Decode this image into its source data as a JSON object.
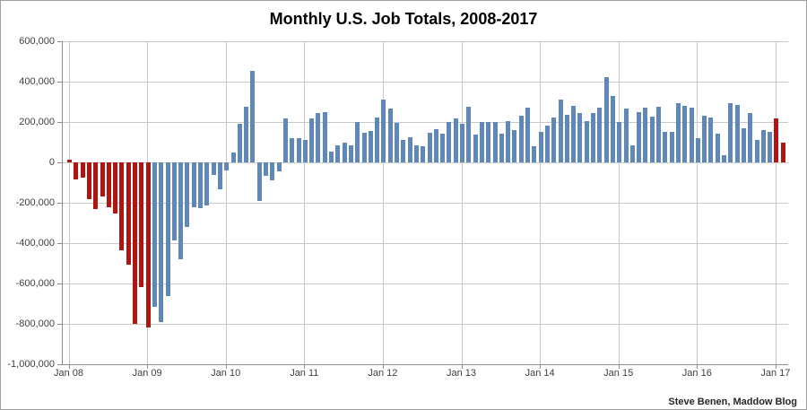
{
  "credit": "Steve Benen, Maddow Blog",
  "chart_data": {
    "type": "bar",
    "title": "Monthly U.S. Job Totals, 2008-2017",
    "xlabel": "",
    "ylabel": "",
    "units": "v = net monthly job change in thousands (bar values estimated from gridlines)",
    "ylim": [
      -1000000,
      600000
    ],
    "grid": "on",
    "legend": "none",
    "colors": {
      "blue": "#5f87b8",
      "red": "#b11512"
    },
    "y_axis": {
      "ticks": [
        {
          "label": "600,000",
          "v": 600
        },
        {
          "label": "400,000",
          "v": 400
        },
        {
          "label": "200,000",
          "v": 200
        },
        {
          "label": "0",
          "v": 0
        },
        {
          "label": "-200,000",
          "v": -200
        },
        {
          "label": "-400,000",
          "v": -400
        },
        {
          "label": "-600,000",
          "v": -600
        },
        {
          "label": "-800,000",
          "v": -800
        },
        {
          "label": "-1,000,000",
          "v": -1000
        }
      ]
    },
    "x_axis": {
      "ticks": [
        "Jan 08",
        "Jan 09",
        "Jan 10",
        "Jan 11",
        "Jan 12",
        "Jan 13",
        "Jan 14",
        "Jan 15",
        "Jan 16",
        "Jan 17"
      ]
    },
    "months": [
      {
        "m": "Jan 2008",
        "v": 15,
        "c": "red"
      },
      {
        "m": "Feb 2008",
        "v": -85,
        "c": "red"
      },
      {
        "m": "Mar 2008",
        "v": -74,
        "c": "red"
      },
      {
        "m": "Apr 2008",
        "v": -180,
        "c": "red"
      },
      {
        "m": "May 2008",
        "v": -230,
        "c": "red"
      },
      {
        "m": "Jun 2008",
        "v": -170,
        "c": "red"
      },
      {
        "m": "Jul 2008",
        "v": -222,
        "c": "red"
      },
      {
        "m": "Aug 2008",
        "v": -255,
        "c": "red"
      },
      {
        "m": "Sep 2008",
        "v": -435,
        "c": "red"
      },
      {
        "m": "Oct 2008",
        "v": -505,
        "c": "red"
      },
      {
        "m": "Nov 2008",
        "v": -800,
        "c": "red"
      },
      {
        "m": "Dec 2008",
        "v": -618,
        "c": "red"
      },
      {
        "m": "Jan 2009",
        "v": -818,
        "c": "red"
      },
      {
        "m": "Feb 2009",
        "v": -715,
        "c": "blue"
      },
      {
        "m": "Mar 2009",
        "v": -790,
        "c": "blue"
      },
      {
        "m": "Apr 2009",
        "v": -660,
        "c": "blue"
      },
      {
        "m": "May 2009",
        "v": -385,
        "c": "blue"
      },
      {
        "m": "Jun 2009",
        "v": -480,
        "c": "blue"
      },
      {
        "m": "Jul 2009",
        "v": -320,
        "c": "blue"
      },
      {
        "m": "Aug 2009",
        "v": -222,
        "c": "blue"
      },
      {
        "m": "Sep 2009",
        "v": -225,
        "c": "blue"
      },
      {
        "m": "Oct 2009",
        "v": -215,
        "c": "blue"
      },
      {
        "m": "Nov 2009",
        "v": -62,
        "c": "blue"
      },
      {
        "m": "Dec 2009",
        "v": -135,
        "c": "blue"
      },
      {
        "m": "Jan 2010",
        "v": -40,
        "c": "blue"
      },
      {
        "m": "Feb 2010",
        "v": 50,
        "c": "blue"
      },
      {
        "m": "Mar 2010",
        "v": 190,
        "c": "blue"
      },
      {
        "m": "Apr 2010",
        "v": 275,
        "c": "blue"
      },
      {
        "m": "May 2010",
        "v": 452,
        "c": "blue"
      },
      {
        "m": "Jun 2010",
        "v": -190,
        "c": "blue"
      },
      {
        "m": "Jul 2010",
        "v": -65,
        "c": "blue"
      },
      {
        "m": "Aug 2010",
        "v": -90,
        "c": "blue"
      },
      {
        "m": "Sep 2010",
        "v": -45,
        "c": "blue"
      },
      {
        "m": "Oct 2010",
        "v": 220,
        "c": "blue"
      },
      {
        "m": "Nov 2010",
        "v": 121,
        "c": "blue"
      },
      {
        "m": "Dec 2010",
        "v": 120,
        "c": "blue"
      },
      {
        "m": "Jan 2011",
        "v": 110,
        "c": "blue"
      },
      {
        "m": "Feb 2011",
        "v": 220,
        "c": "blue"
      },
      {
        "m": "Mar 2011",
        "v": 246,
        "c": "blue"
      },
      {
        "m": "Apr 2011",
        "v": 251,
        "c": "blue"
      },
      {
        "m": "May 2011",
        "v": 54,
        "c": "blue"
      },
      {
        "m": "Jun 2011",
        "v": 84,
        "c": "blue"
      },
      {
        "m": "Jul 2011",
        "v": 96,
        "c": "blue"
      },
      {
        "m": "Aug 2011",
        "v": 85,
        "c": "blue"
      },
      {
        "m": "Sep 2011",
        "v": 202,
        "c": "blue"
      },
      {
        "m": "Oct 2011",
        "v": 145,
        "c": "blue"
      },
      {
        "m": "Nov 2011",
        "v": 157,
        "c": "blue"
      },
      {
        "m": "Dec 2011",
        "v": 222,
        "c": "blue"
      },
      {
        "m": "Jan 2012",
        "v": 311,
        "c": "blue"
      },
      {
        "m": "Feb 2012",
        "v": 267,
        "c": "blue"
      },
      {
        "m": "Mar 2012",
        "v": 197,
        "c": "blue"
      },
      {
        "m": "Apr 2012",
        "v": 111,
        "c": "blue"
      },
      {
        "m": "May 2012",
        "v": 123,
        "c": "blue"
      },
      {
        "m": "Jun 2012",
        "v": 84,
        "c": "blue"
      },
      {
        "m": "Jul 2012",
        "v": 81,
        "c": "blue"
      },
      {
        "m": "Aug 2012",
        "v": 148,
        "c": "blue"
      },
      {
        "m": "Sep 2012",
        "v": 163,
        "c": "blue"
      },
      {
        "m": "Oct 2012",
        "v": 141,
        "c": "blue"
      },
      {
        "m": "Nov 2012",
        "v": 200,
        "c": "blue"
      },
      {
        "m": "Dec 2012",
        "v": 218,
        "c": "blue"
      },
      {
        "m": "Jan 2013",
        "v": 193,
        "c": "blue"
      },
      {
        "m": "Feb 2013",
        "v": 277,
        "c": "blue"
      },
      {
        "m": "Mar 2013",
        "v": 138,
        "c": "blue"
      },
      {
        "m": "Apr 2013",
        "v": 198,
        "c": "blue"
      },
      {
        "m": "May 2013",
        "v": 198,
        "c": "blue"
      },
      {
        "m": "Jun 2013",
        "v": 198,
        "c": "blue"
      },
      {
        "m": "Jul 2013",
        "v": 144,
        "c": "blue"
      },
      {
        "m": "Aug 2013",
        "v": 203,
        "c": "blue"
      },
      {
        "m": "Sep 2013",
        "v": 158,
        "c": "blue"
      },
      {
        "m": "Oct 2013",
        "v": 232,
        "c": "blue"
      },
      {
        "m": "Nov 2013",
        "v": 270,
        "c": "blue"
      },
      {
        "m": "Dec 2013",
        "v": 78,
        "c": "blue"
      },
      {
        "m": "Jan 2014",
        "v": 150,
        "c": "blue"
      },
      {
        "m": "Feb 2014",
        "v": 182,
        "c": "blue"
      },
      {
        "m": "Mar 2014",
        "v": 222,
        "c": "blue"
      },
      {
        "m": "Apr 2014",
        "v": 310,
        "c": "blue"
      },
      {
        "m": "May 2014",
        "v": 237,
        "c": "blue"
      },
      {
        "m": "Jun 2014",
        "v": 281,
        "c": "blue"
      },
      {
        "m": "Jul 2014",
        "v": 244,
        "c": "blue"
      },
      {
        "m": "Aug 2014",
        "v": 203,
        "c": "blue"
      },
      {
        "m": "Sep 2014",
        "v": 244,
        "c": "blue"
      },
      {
        "m": "Oct 2014",
        "v": 271,
        "c": "blue"
      },
      {
        "m": "Nov 2014",
        "v": 423,
        "c": "blue"
      },
      {
        "m": "Dec 2014",
        "v": 329,
        "c": "blue"
      },
      {
        "m": "Jan 2015",
        "v": 201,
        "c": "blue"
      },
      {
        "m": "Feb 2015",
        "v": 266,
        "c": "blue"
      },
      {
        "m": "Mar 2015",
        "v": 84,
        "c": "blue"
      },
      {
        "m": "Apr 2015",
        "v": 251,
        "c": "blue"
      },
      {
        "m": "May 2015",
        "v": 273,
        "c": "blue"
      },
      {
        "m": "Jun 2015",
        "v": 228,
        "c": "blue"
      },
      {
        "m": "Jul 2015",
        "v": 277,
        "c": "blue"
      },
      {
        "m": "Aug 2015",
        "v": 153,
        "c": "blue"
      },
      {
        "m": "Sep 2015",
        "v": 149,
        "c": "blue"
      },
      {
        "m": "Oct 2015",
        "v": 295,
        "c": "blue"
      },
      {
        "m": "Nov 2015",
        "v": 280,
        "c": "blue"
      },
      {
        "m": "Dec 2015",
        "v": 271,
        "c": "blue"
      },
      {
        "m": "Jan 2016",
        "v": 120,
        "c": "blue"
      },
      {
        "m": "Feb 2016",
        "v": 230,
        "c": "blue"
      },
      {
        "m": "Mar 2016",
        "v": 222,
        "c": "blue"
      },
      {
        "m": "Apr 2016",
        "v": 144,
        "c": "blue"
      },
      {
        "m": "May 2016",
        "v": 37,
        "c": "blue"
      },
      {
        "m": "Jun 2016",
        "v": 292,
        "c": "blue"
      },
      {
        "m": "Jul 2016",
        "v": 286,
        "c": "blue"
      },
      {
        "m": "Aug 2016",
        "v": 170,
        "c": "blue"
      },
      {
        "m": "Sep 2016",
        "v": 244,
        "c": "blue"
      },
      {
        "m": "Oct 2016",
        "v": 111,
        "c": "blue"
      },
      {
        "m": "Nov 2016",
        "v": 159,
        "c": "blue"
      },
      {
        "m": "Dec 2016",
        "v": 152,
        "c": "blue"
      },
      {
        "m": "Jan 2017",
        "v": 218,
        "c": "red"
      },
      {
        "m": "Feb 2017",
        "v": 98,
        "c": "red"
      }
    ]
  }
}
